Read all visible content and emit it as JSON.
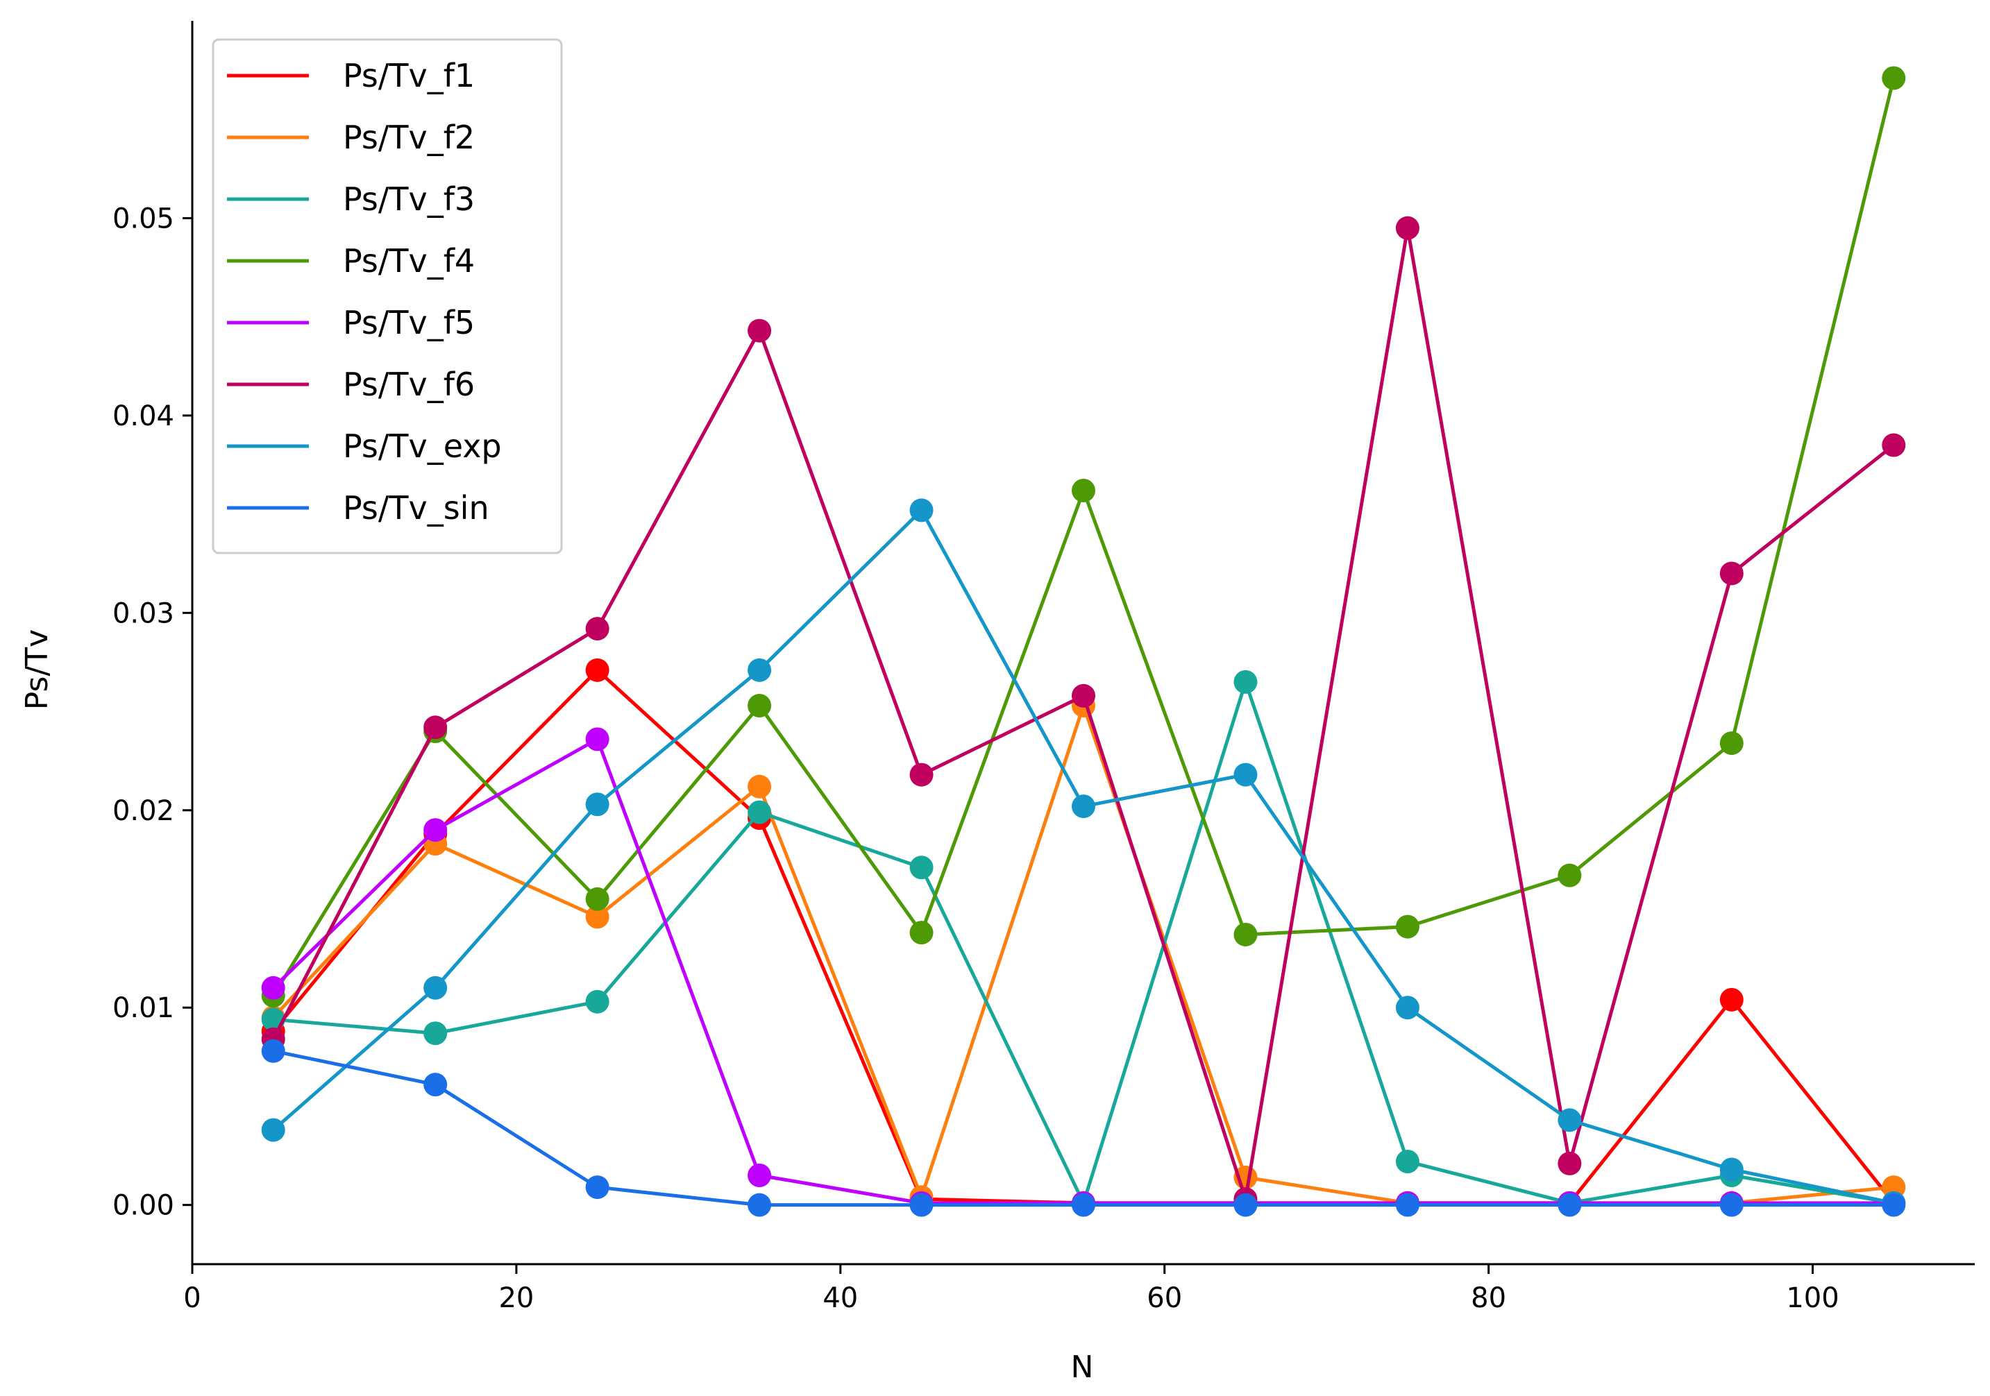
{
  "chart_data": {
    "type": "line",
    "title": "",
    "xlabel": "N",
    "ylabel": "Ps/Tv",
    "xlim": [
      0,
      110
    ],
    "ylim": [
      -0.003,
      0.06
    ],
    "xticks": [
      0,
      20,
      40,
      60,
      80,
      100
    ],
    "xtick_labels": [
      "0",
      "20",
      "40",
      "60",
      "80",
      "100"
    ],
    "yticks": [
      0.0,
      0.01,
      0.02,
      0.03,
      0.04,
      0.05
    ],
    "ytick_labels": [
      "0.00",
      "0.01",
      "0.02",
      "0.03",
      "0.04",
      "0.05"
    ],
    "grid": false,
    "legend_position": "top-left",
    "x": [
      5,
      15,
      25,
      35,
      45,
      55,
      65,
      75,
      85,
      95,
      105
    ],
    "series": [
      {
        "name": "Ps/Tv_f1",
        "color": "#ff0000",
        "values": [
          0.0088,
          0.0188,
          0.0271,
          0.0196,
          0.0003,
          0.0001,
          0.0001,
          0.0001,
          0.0001,
          0.0104,
          0.0001
        ]
      },
      {
        "name": "Ps/Tv_f2",
        "color": "#ff7f0e",
        "values": [
          0.0095,
          0.0183,
          0.0146,
          0.0212,
          0.0004,
          0.0253,
          0.0014,
          0.0001,
          0.0001,
          0.0001,
          0.0009
        ]
      },
      {
        "name": "Ps/Tv_f3",
        "color": "#17a89a",
        "values": [
          0.0094,
          0.0087,
          0.0103,
          0.0199,
          0.0171,
          0.0001,
          0.0265,
          0.0022,
          0.0001,
          0.0015,
          0.0001
        ]
      },
      {
        "name": "Ps/Tv_f4",
        "color": "#4e9a06",
        "values": [
          0.0106,
          0.024,
          0.0155,
          0.0253,
          0.0138,
          0.0362,
          0.0137,
          0.0141,
          0.0167,
          0.0234,
          0.0571
        ]
      },
      {
        "name": "Ps/Tv_f5",
        "color": "#bf00ff",
        "values": [
          0.011,
          0.019,
          0.0236,
          0.0015,
          0.0001,
          0.0001,
          0.0001,
          0.0001,
          0.0001,
          0.0001,
          0.0001
        ]
      },
      {
        "name": "Ps/Tv_f6",
        "color": "#c0005f",
        "values": [
          0.0084,
          0.0242,
          0.0292,
          0.0443,
          0.0218,
          0.0258,
          0.0003,
          0.0495,
          0.0021,
          0.032,
          0.0385
        ]
      },
      {
        "name": "Ps/Tv_exp",
        "color": "#1496c8",
        "values": [
          0.0038,
          0.011,
          0.0203,
          0.0271,
          0.0352,
          0.0202,
          0.0218,
          0.01,
          0.0043,
          0.0018,
          0.0001
        ]
      },
      {
        "name": "Ps/Tv_sin",
        "color": "#1a6fe8",
        "values": [
          0.0078,
          0.0061,
          0.0009,
          0.0,
          0.0,
          0.0,
          0.0,
          0.0,
          0.0,
          0.0,
          0.0
        ]
      }
    ]
  }
}
